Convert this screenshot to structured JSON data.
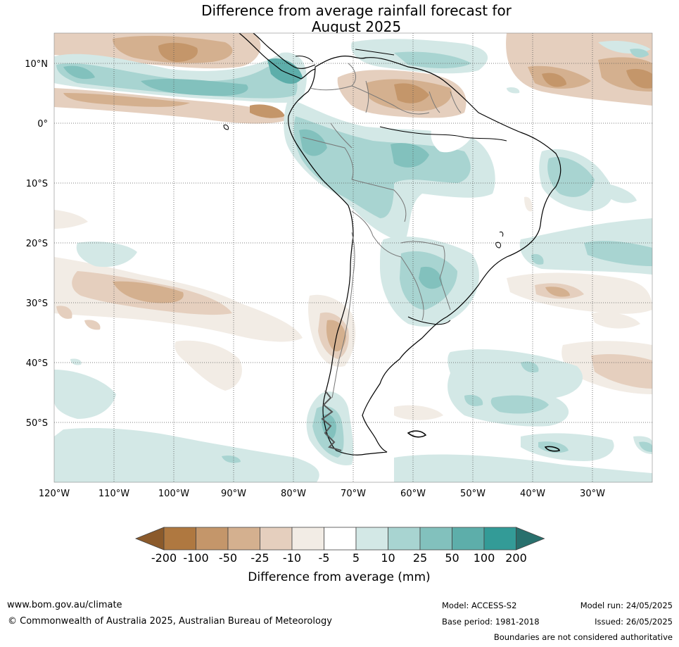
{
  "title": "Difference from average rainfall forecast for\nAugust 2025",
  "map": {
    "longitude_labels": [
      "120°W",
      "110°W",
      "100°W",
      "90°W",
      "80°W",
      "70°W",
      "60°W",
      "50°W",
      "40°W",
      "30°W"
    ],
    "latitude_labels": [
      "10°N",
      "0°",
      "10°S",
      "20°S",
      "30°S",
      "40°S",
      "50°S"
    ],
    "extent": {
      "lon_min": -120,
      "lon_max": -20,
      "lat_min": -60,
      "lat_max": 15
    },
    "gridlines": "dotted"
  },
  "legend": {
    "tick_labels": [
      "-200",
      "-100",
      "-50",
      "-25",
      "-10",
      "-5",
      "5",
      "10",
      "25",
      "50",
      "100",
      "200"
    ],
    "colors": [
      "#8b5a2b",
      "#af7840",
      "#c4966a",
      "#d4b08f",
      "#e5cfbe",
      "#f2ece5",
      "#ffffff",
      "#d3e8e6",
      "#a8d4d1",
      "#82c1bd",
      "#5daeaa",
      "#339b97",
      "#28706d"
    ],
    "extend": "both",
    "label": "Difference from average (mm)"
  },
  "footer": {
    "url": "www.bom.gov.au/climate",
    "copyright": "© Commonwealth of Australia 2025, Australian Bureau of Meteorology",
    "model": "Model: ACCESS-S2",
    "base_period": "Base period: 1981-2018",
    "model_run": "Model run: 24/05/2025",
    "issued": "Issued: 26/05/2025",
    "disclaimer": "Boundaries are not considered authoritative"
  }
}
